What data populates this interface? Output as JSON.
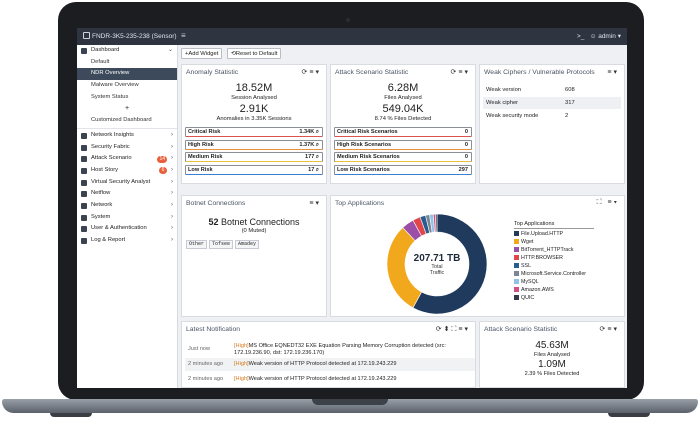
{
  "window": {
    "device": "FNDR-3K5-235-238 (Sensor)",
    "user": "admin",
    "shell_glyph": ">_"
  },
  "toolbar": {
    "add_widget": "+Add Widget",
    "reset_default": "Reset to Default"
  },
  "sidebar": {
    "items": [
      {
        "label": "Dashboard",
        "icon": "dashboard-icon",
        "chevron": "⌄",
        "sub": false
      },
      {
        "label": "Default",
        "sub": true
      },
      {
        "label": "NDR Overview",
        "sub": true,
        "active": true
      },
      {
        "label": "Malware Overview",
        "sub": true
      },
      {
        "label": "System Status",
        "sub": true
      },
      {
        "label": "+",
        "plus": true
      },
      {
        "label": "Customized Dashboard",
        "sub": true
      },
      {
        "label": "Network Insights",
        "icon": "network-insights-icon",
        "chevron": "›"
      },
      {
        "label": "Security Fabric",
        "icon": "security-fabric-icon",
        "chevron": "›"
      },
      {
        "label": "Attack Scenario",
        "icon": "attack-scenario-icon",
        "chevron": "›",
        "badge": "14"
      },
      {
        "label": "Host Story",
        "icon": "host-story-icon",
        "chevron": "›",
        "badge": "6"
      },
      {
        "label": "Virtual Security Analyst",
        "icon": "vsa-icon",
        "chevron": "›"
      },
      {
        "label": "Netflow",
        "icon": "netflow-icon",
        "chevron": "›"
      },
      {
        "label": "Network",
        "icon": "network-icon",
        "chevron": "›"
      },
      {
        "label": "System",
        "icon": "system-icon",
        "chevron": "›"
      },
      {
        "label": "User & Authentication",
        "icon": "user-icon",
        "chevron": "›"
      },
      {
        "label": "Log & Report",
        "icon": "log-icon",
        "chevron": "›"
      }
    ]
  },
  "anomaly": {
    "title": "Anomaly Statistic",
    "sessions_value": "18.52M",
    "sessions_label": "Session Analysed",
    "anomalies_value": "2.91K",
    "anomalies_label": "Anomalies in 3.35K Sessions",
    "rows": [
      {
        "label": "Critical Risk",
        "value": "1.34K",
        "color": "#d9534f"
      },
      {
        "label": "High Risk",
        "value": "1.37K",
        "color": "#e8903c"
      },
      {
        "label": "Medium Risk",
        "value": "177",
        "color": "#e8c23c"
      },
      {
        "label": "Low Risk",
        "value": "17",
        "color": "#3c7fd0"
      }
    ]
  },
  "attack_top": {
    "title": "Attack Scenario Statistic",
    "files_value": "6.28M",
    "files_label": "Files Analysed",
    "detected_value": "549.04K",
    "detected_label": "8.74 % Files Detected",
    "rows": [
      {
        "label": "Critical Risk Scenarios",
        "value": "0",
        "color": "#d9534f"
      },
      {
        "label": "High Risk Scenarios",
        "value": "0",
        "color": "#e8903c"
      },
      {
        "label": "Medium Risk Scenarios",
        "value": "0",
        "color": "#e8c23c"
      },
      {
        "label": "Low Risk Scenarios",
        "value": "297",
        "color": "#3c7fd0"
      }
    ]
  },
  "weak": {
    "title": "Weak Ciphers / Vulnerable Protocols",
    "rows": [
      {
        "label": "Weak version",
        "value": "608"
      },
      {
        "label": "Weak cipher",
        "value": "317"
      },
      {
        "label": "Weak security mode",
        "value": "2"
      }
    ]
  },
  "botnet": {
    "title": "Botnet Connections",
    "count": "52",
    "count_label": "Botnet Connections",
    "muted": "(0 Muted)",
    "tags": [
      "Other",
      "Tofsee",
      "Amadey"
    ]
  },
  "top_apps": {
    "title": "Top Applications",
    "center_value": "207.71 TB",
    "center_label1": "Total",
    "center_label2": "Traffic",
    "legend_title": "Top Applications",
    "legend": [
      {
        "name": "File.Upload.HTTP",
        "color": "#1f3a5c"
      },
      {
        "name": "Wget",
        "color": "#f2a81d"
      },
      {
        "name": "BitTorrent_HTTPTrack",
        "color": "#9b4fa6"
      },
      {
        "name": "HTTP.BROWSER",
        "color": "#e0474c"
      },
      {
        "name": "SSL",
        "color": "#2a5d8f"
      },
      {
        "name": "Microsoft.Service.Controller",
        "color": "#7a8596"
      },
      {
        "name": "MySQL",
        "color": "#8ec3e6"
      },
      {
        "name": "Amazon.AWS",
        "color": "#d24f86"
      },
      {
        "name": "QUIC",
        "color": "#2f3b4a"
      }
    ]
  },
  "chart_data": {
    "type": "pie",
    "title": "Top Applications",
    "categories": [
      "File.Upload.HTTP",
      "Wget",
      "BitTorrent_HTTPTrack",
      "HTTP.BROWSER",
      "SSL",
      "Microsoft.Service.Controller",
      "MySQL",
      "Amazon.AWS",
      "QUIC"
    ],
    "values": [
      58,
      30,
      4,
      2.5,
      1.8,
      1.3,
      1.2,
      0.7,
      0.5
    ],
    "legend": "right"
  },
  "notif": {
    "title": "Latest Notification",
    "rows": [
      {
        "time": "Just now",
        "level": "[High]",
        "text": "MS Office EQNEDT32 EXE Equation Parsing Memory Corruption detected (src: 172.19.236.90, dst: 172.19.236.170)"
      },
      {
        "time": "2 minutes ago",
        "level": "[High]",
        "text": "Weak version of HTTP Protocol detected at 172.19.243.229"
      },
      {
        "time": "2 minutes ago",
        "level": "[High]",
        "text": "Weak version of HTTP Protocol detected at 172.19.243.229"
      }
    ]
  },
  "attack_bottom": {
    "title": "Attack Scenario Statistic",
    "files_value": "45.63M",
    "files_label": "Files Analysed",
    "detected_value": "1.09M",
    "detected_label": "2.39 % Files Detected"
  },
  "icons": {
    "refresh": "⟳",
    "menu": "≡",
    "expand": "⛶",
    "pin": "⬍",
    "caret": "▾",
    "magnifier": "🔍"
  }
}
